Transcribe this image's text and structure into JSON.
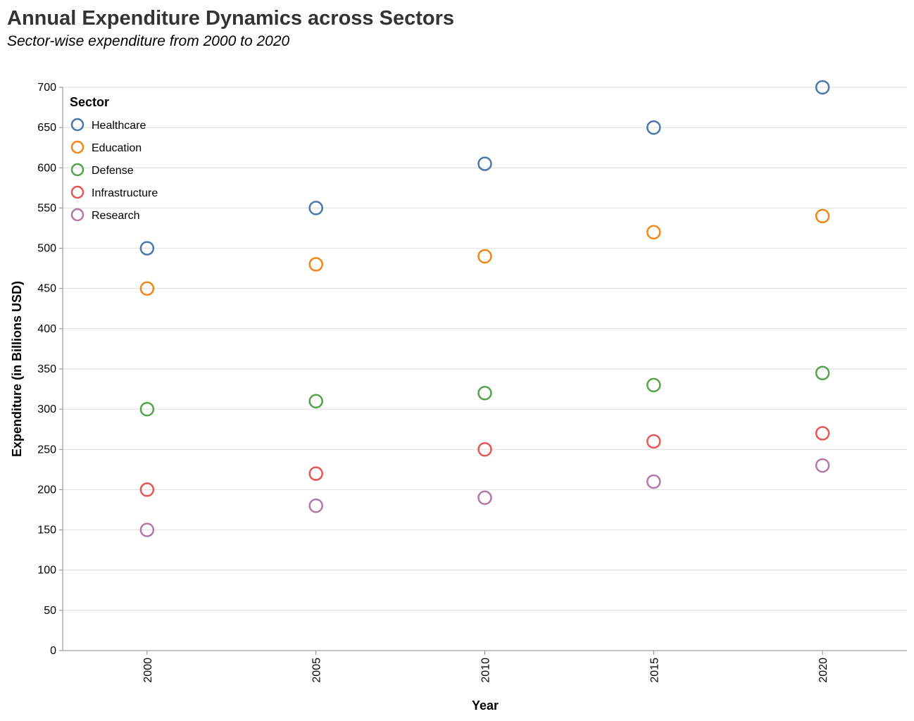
{
  "chart_data": {
    "type": "scatter",
    "title": "Annual Expenditure Dynamics across Sectors",
    "subtitle": "Sector-wise expenditure from 2000 to 2020",
    "xlabel": "Year",
    "ylabel": "Expenditure (in Billions USD)",
    "x": [
      "2000",
      "2005",
      "2010",
      "2015",
      "2020"
    ],
    "ylim": [
      0,
      700
    ],
    "yticks": [
      0,
      50,
      100,
      150,
      200,
      250,
      300,
      350,
      400,
      450,
      500,
      550,
      600,
      650,
      700
    ],
    "grid": true,
    "legend": {
      "title": "Sector",
      "placement": "top-left"
    },
    "series": [
      {
        "name": "Healthcare",
        "color": "#4c78a8",
        "values": [
          500,
          550,
          605,
          650,
          700
        ]
      },
      {
        "name": "Education",
        "color": "#f58518",
        "values": [
          450,
          480,
          490,
          520,
          540
        ]
      },
      {
        "name": "Defense",
        "color": "#54a24b",
        "values": [
          300,
          310,
          320,
          330,
          345
        ]
      },
      {
        "name": "Infrastructure",
        "color": "#e45756",
        "values": [
          200,
          220,
          250,
          260,
          270
        ]
      },
      {
        "name": "Research",
        "color": "#b279a2",
        "values": [
          150,
          180,
          190,
          210,
          230
        ]
      }
    ]
  }
}
